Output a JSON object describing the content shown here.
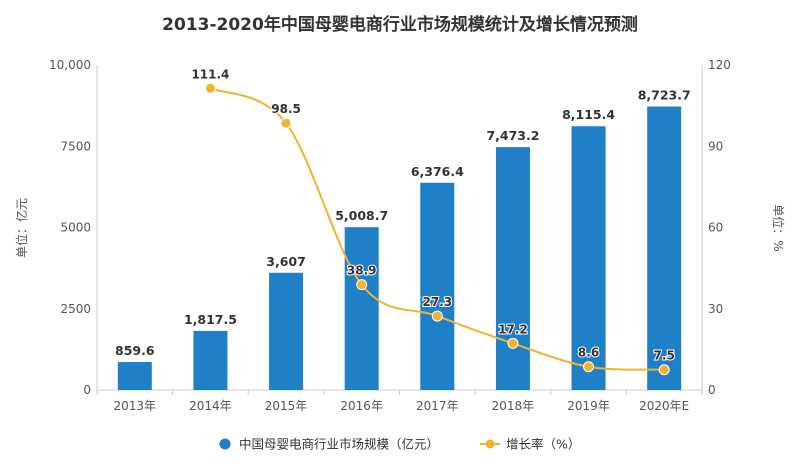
{
  "chart_data": {
    "type": "bar",
    "title": "2013-2020年中国母婴电商行业市场规模统计及增长情况预测",
    "categories": [
      "2013年",
      "2014年",
      "2015年",
      "2016年",
      "2017年",
      "2018年",
      "2019年",
      "2020年E"
    ],
    "series": [
      {
        "name": "中国母婴电商行业市场规模（亿元）",
        "type": "bar",
        "axis": "left",
        "values": [
          859.6,
          1817.5,
          3607,
          5008.7,
          6376.4,
          7473.2,
          8115.4,
          8723.7
        ],
        "labels": [
          "859.6",
          "1,817.5",
          "3,607",
          "5,008.7",
          "6,376.4",
          "7,473.2",
          "8,115.4",
          "8,723.7"
        ],
        "color": "#1f7fc7"
      },
      {
        "name": "增长率（%）",
        "type": "line",
        "axis": "right",
        "values": [
          null,
          111.4,
          98.5,
          38.9,
          27.3,
          17.2,
          8.6,
          7.5
        ],
        "labels": [
          "",
          "111.4",
          "98.5",
          "38.9",
          "27.3",
          "17.2",
          "8.6",
          "7.5"
        ],
        "color": "#f0b42e"
      }
    ],
    "y_left": {
      "label": "单位：亿元",
      "ylim": [
        0,
        10000
      ],
      "ticks": [
        0,
        2500,
        5000,
        7500,
        10000
      ],
      "tick_labels": [
        "0",
        "2500",
        "5000",
        "7500",
        "10,000"
      ]
    },
    "y_right": {
      "label": "单位：%",
      "ylim": [
        0,
        120
      ],
      "ticks": [
        0,
        30,
        60,
        90,
        120
      ],
      "tick_labels": [
        "0",
        "30",
        "60",
        "90",
        "120"
      ]
    },
    "grid": false,
    "legend": "bottom"
  }
}
